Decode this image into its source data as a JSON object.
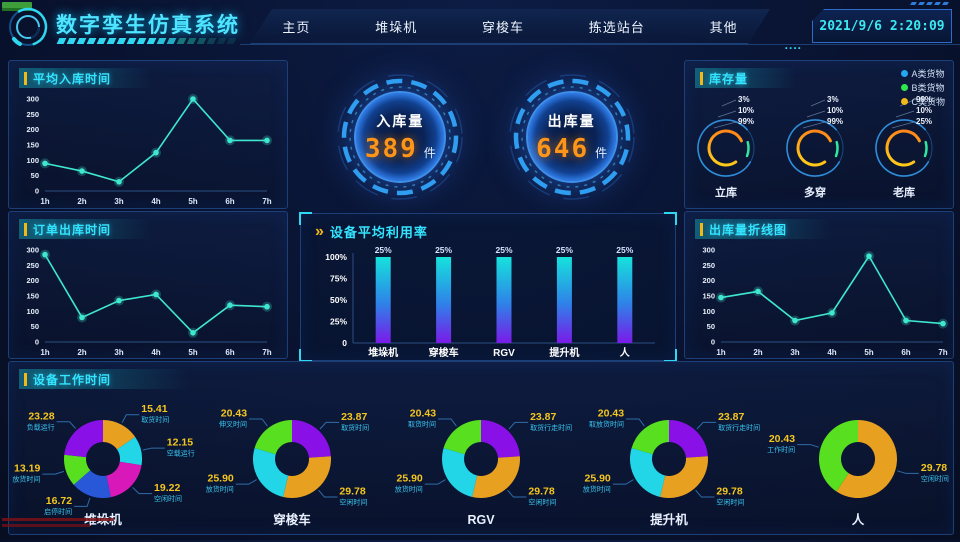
{
  "header": {
    "title": "数字孪生仿真系统",
    "nav": [
      "主页",
      "堆垛机",
      "穿梭车",
      "拣选站台",
      "其他"
    ],
    "datetime": "2021/9/6 2:20:09",
    "clock_dots": "...."
  },
  "kpis": {
    "inbound": {
      "label": "入库量",
      "value": "389",
      "unit": "件"
    },
    "outbound": {
      "label": "出库量",
      "value": "646",
      "unit": "件"
    }
  },
  "colors": {
    "accent_cyan": "#33e4ff",
    "line_teal": "#3ee8cf",
    "value_yellow": "#f5c61e",
    "label_cyan": "#38c6f0",
    "kpi_orange": "#ff9518",
    "bar_top": "#16e2dc",
    "bar_mid": "#2f80e8",
    "bar_bottom": "#7a1ae8"
  },
  "chart_data": [
    {
      "id": "avg_inbound",
      "type": "line",
      "title": "平均入库时间",
      "x": [
        "1h",
        "2h",
        "3h",
        "4h",
        "5h",
        "6h",
        "7h"
      ],
      "values": [
        90,
        65,
        30,
        125,
        300,
        165,
        165
      ],
      "ylim": [
        0,
        300
      ],
      "yticks": [
        0,
        50,
        100,
        150,
        200,
        250,
        300
      ],
      "grid": false,
      "legend_position": "none"
    },
    {
      "id": "order_outbound",
      "type": "line",
      "title": "订单出库时间",
      "x": [
        "1h",
        "2h",
        "3h",
        "4h",
        "5h",
        "6h",
        "7h"
      ],
      "values": [
        285,
        80,
        135,
        155,
        30,
        120,
        115
      ],
      "ylim": [
        0,
        300
      ],
      "yticks": [
        0,
        50,
        100,
        150,
        200,
        250,
        300
      ],
      "grid": false,
      "legend_position": "none"
    },
    {
      "id": "outbound_line",
      "type": "line",
      "title": "出库量折线图",
      "x": [
        "1h",
        "2h",
        "3h",
        "4h",
        "5h",
        "6h",
        "7h"
      ],
      "values": [
        145,
        165,
        70,
        95,
        280,
        70,
        60
      ],
      "ylim": [
        0,
        300
      ],
      "yticks": [
        0,
        50,
        100,
        150,
        200,
        250,
        300
      ],
      "grid": false,
      "legend_position": "none"
    },
    {
      "id": "utilization",
      "type": "bar",
      "title": "设备平均利用率",
      "categories": [
        "堆垛机",
        "穿梭车",
        "RGV",
        "提升机",
        "人"
      ],
      "values": [
        25,
        25,
        25,
        25,
        25
      ],
      "value_labels": [
        "25%",
        "25%",
        "25%",
        "25%",
        "25%"
      ],
      "bar_render_height_pct": 100,
      "ytick_labels": [
        "0",
        "25%",
        "50%",
        "75%",
        "100%"
      ],
      "ylim": [
        0,
        100
      ],
      "grid": false
    },
    {
      "id": "inventory",
      "type": "gauge-group",
      "title": "库存量",
      "legend": [
        {
          "label": "A类货物",
          "color": "#24a8f0"
        },
        {
          "label": "B类货物",
          "color": "#2ee84e"
        },
        {
          "label": "C类货物",
          "color": "#f0b818"
        }
      ],
      "gauges": [
        {
          "name": "立库",
          "labels": [
            "3%",
            "10%",
            "99%"
          ]
        },
        {
          "name": "多穿",
          "labels": [
            "3%",
            "10%",
            "99%"
          ]
        },
        {
          "name": "老库",
          "labels": [
            "99%",
            "10%",
            "25%"
          ]
        }
      ]
    },
    {
      "id": "work_time",
      "type": "pie-group",
      "title": "设备工作时间",
      "donuts": [
        {
          "name": "堆垛机",
          "slices": [
            {
              "label": "取货时间",
              "value": 15.41,
              "color": "#e8a020"
            },
            {
              "label": "空载运行",
              "value": 12.15,
              "color": "#22d6e8"
            },
            {
              "label": "空闲时间",
              "value": 19.22,
              "color": "#d818b8"
            },
            {
              "label": "启停时间",
              "value": 16.72,
              "color": "#2858d8"
            },
            {
              "label": "放货时间",
              "value": 13.19,
              "color": "#58e020"
            },
            {
              "label": "负载运行",
              "value": 23.28,
              "color": "#8a10e8"
            }
          ]
        },
        {
          "name": "穿梭车",
          "slices": [
            {
              "label": "取货时间",
              "value": 23.87,
              "color": "#8a10e8"
            },
            {
              "label": "空闲时间",
              "value": 29.78,
              "color": "#e8a020"
            },
            {
              "label": "放货时间",
              "value": 25.9,
              "color": "#22d6e8"
            },
            {
              "label": "伸叉时间",
              "value": 20.43,
              "color": "#58e020"
            }
          ]
        },
        {
          "name": "RGV",
          "slices": [
            {
              "label": "取货行走时间",
              "value": 23.87,
              "color": "#8a10e8"
            },
            {
              "label": "空闲时间",
              "value": 29.78,
              "color": "#e8a020"
            },
            {
              "label": "放货时间",
              "value": 25.9,
              "color": "#22d6e8"
            },
            {
              "label": "取货时间",
              "value": 20.43,
              "color": "#58e020"
            }
          ]
        },
        {
          "name": "提升机",
          "slices": [
            {
              "label": "取货行走时间",
              "value": 23.87,
              "color": "#8a10e8"
            },
            {
              "label": "空闲时间",
              "value": 29.78,
              "color": "#e8a020"
            },
            {
              "label": "放货时间",
              "value": 25.9,
              "color": "#22d6e8"
            },
            {
              "label": "取放货时间",
              "value": 20.43,
              "color": "#58e020"
            }
          ]
        },
        {
          "name": "人",
          "slices": [
            {
              "label": "空闲时间",
              "value": 29.78,
              "color": "#e8a020"
            },
            {
              "label": "工作时间",
              "value": 20.43,
              "color": "#58e020"
            }
          ]
        }
      ]
    }
  ]
}
